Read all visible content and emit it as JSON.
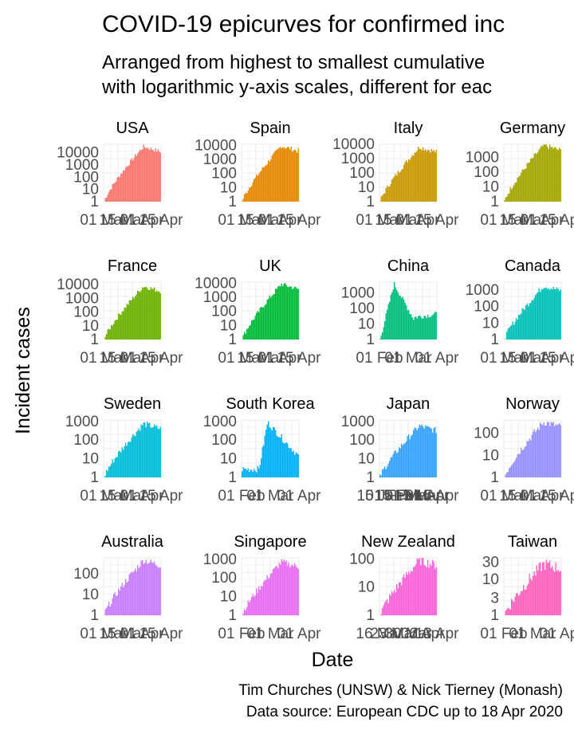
{
  "title": "COVID-19 epicurves for confirmed inc",
  "subtitle": [
    "Arranged from highest to smallest cumulative",
    "with logarithmic y-axis scales, different for eac"
  ],
  "xlabel": "Date",
  "ylabel": "Incident cases",
  "caption": [
    "Tim Churches (UNSW) & Nick Tierney (Monash)",
    "Data source: European CDC up to 18 Apr 2020"
  ],
  "chart_data": [
    {
      "panel": "USA",
      "type": "bar",
      "color": "#F8766D",
      "yscale": "log",
      "ylim": [
        1,
        50000
      ],
      "yticks": [
        "1",
        "10",
        "100",
        "1000",
        "10000"
      ],
      "xticks": [
        "01 Mar",
        "15 Mar",
        "01 Apr",
        "15 Apr"
      ],
      "peak": 32000,
      "start_fraction": 0.0
    },
    {
      "panel": "Spain",
      "type": "bar",
      "color": "#E58700",
      "yscale": "log",
      "ylim": [
        1,
        12000
      ],
      "yticks": [
        "1",
        "10",
        "100",
        "1000",
        "10000"
      ],
      "xticks": [
        "01 Mar",
        "15 Mar",
        "01 Apr",
        "15 Apr"
      ],
      "peak": 9000,
      "start_fraction": 0.05
    },
    {
      "panel": "Italy",
      "type": "bar",
      "color": "#C99800",
      "yscale": "log",
      "ylim": [
        1,
        10000
      ],
      "yticks": [
        "1",
        "10",
        "100",
        "1000",
        "10000"
      ],
      "xticks": [
        "01 Mar",
        "15 Mar",
        "01 Apr",
        "15 Apr"
      ],
      "peak": 6500,
      "start_fraction": 0.0
    },
    {
      "panel": "Germany",
      "type": "bar",
      "color": "#A3A500",
      "yscale": "log",
      "ylim": [
        1,
        8000
      ],
      "yticks": [
        "1",
        "10",
        "100",
        "1000"
      ],
      "xticks": [
        "01 Mar",
        "15 Mar",
        "01 Apr",
        "15 Apr"
      ],
      "peak": 6900,
      "start_fraction": 0.0
    },
    {
      "panel": "France",
      "type": "bar",
      "color": "#6BB100",
      "yscale": "log",
      "ylim": [
        1,
        15000
      ],
      "yticks": [
        "1",
        "10",
        "100",
        "1000",
        "10000"
      ],
      "xticks": [
        "01 Mar",
        "15 Mar",
        "01 Apr",
        "15 Apr"
      ],
      "peak": 7500,
      "start_fraction": 0.0
    },
    {
      "panel": "UK",
      "type": "bar",
      "color": "#00BA38",
      "yscale": "log",
      "ylim": [
        1,
        12000
      ],
      "yticks": [
        "1",
        "10",
        "100",
        "1000",
        "10000"
      ],
      "xticks": [
        "01 Mar",
        "15 Mar",
        "01 Apr",
        "15 Apr"
      ],
      "peak": 8700,
      "start_fraction": 0.0
    },
    {
      "panel": "China",
      "type": "bar",
      "color": "#00BF7D",
      "yscale": "log",
      "ylim": [
        1,
        5000
      ],
      "yticks": [
        "1",
        "10",
        "100",
        "1000"
      ],
      "xticks": [
        "01 Feb",
        "01 Mar",
        "01 Apr"
      ],
      "peak": 3900,
      "start_fraction": 0.0
    },
    {
      "panel": "Canada",
      "type": "bar",
      "color": "#00C0B8",
      "yscale": "log",
      "ylim": [
        1,
        3000
      ],
      "yticks": [
        "1",
        "10",
        "100",
        "1000"
      ],
      "xticks": [
        "01 Mar",
        "15 Mar",
        "01 Apr",
        "15 Apr"
      ],
      "peak": 1800,
      "start_fraction": 0.0
    },
    {
      "panel": "Sweden",
      "type": "bar",
      "color": "#00BCD8",
      "yscale": "log",
      "ylim": [
        1,
        1200
      ],
      "yticks": [
        "1",
        "10",
        "100",
        "1000"
      ],
      "xticks": [
        "01 Mar",
        "15 Mar",
        "01 Apr",
        "15 Apr"
      ],
      "peak": 750,
      "start_fraction": 0.0
    },
    {
      "panel": "South Korea",
      "type": "bar",
      "color": "#00B0F6",
      "yscale": "log",
      "ylim": [
        1,
        1200
      ],
      "yticks": [
        "1",
        "10",
        "100",
        "1000"
      ],
      "xticks": [
        "01 Feb",
        "01 Mar",
        "01 Apr"
      ],
      "peak": 900,
      "start_fraction": 0.0
    },
    {
      "panel": "Japan",
      "type": "bar",
      "color": "#35A2FF",
      "yscale": "log",
      "ylim": [
        1,
        1200
      ],
      "yticks": [
        "1",
        "10",
        "100",
        "1000"
      ],
      "xticks": [
        "15 Jan",
        "01 Feb",
        "15 Feb",
        "01 Mar",
        "15 Mar",
        "01 Apr",
        "15 Apr"
      ],
      "peak": 580,
      "start_fraction": 0.0
    },
    {
      "panel": "Norway",
      "type": "bar",
      "color": "#9590FF",
      "yscale": "log",
      "ylim": [
        1,
        400
      ],
      "yticks": [
        "1",
        "10",
        "100"
      ],
      "xticks": [
        "01 Mar",
        "15 Mar",
        "01 Apr",
        "15 Apr"
      ],
      "peak": 330,
      "start_fraction": 0.0
    },
    {
      "panel": "Australia",
      "type": "bar",
      "color": "#C77CFF",
      "yscale": "log",
      "ylim": [
        1,
        600
      ],
      "yticks": [
        "1",
        "10",
        "100"
      ],
      "xticks": [
        "01 Mar",
        "15 Mar",
        "01 Apr",
        "15 Apr"
      ],
      "peak": 460,
      "start_fraction": 0.0
    },
    {
      "panel": "Singapore",
      "type": "bar",
      "color": "#E76BF3",
      "yscale": "log",
      "ylim": [
        1,
        1200
      ],
      "yticks": [
        "1",
        "10",
        "100",
        "1000"
      ],
      "xticks": [
        "01 Feb",
        "01 Mar",
        "01 Apr"
      ],
      "peak": 730,
      "start_fraction": 0.0
    },
    {
      "panel": "New Zealand",
      "type": "bar",
      "color": "#FA62DB",
      "yscale": "log",
      "ylim": [
        1,
        110
      ],
      "yticks": [
        "1",
        "10",
        "100"
      ],
      "xticks": [
        "16 Mar",
        "23 Mar",
        "30 Mar",
        "06 Apr",
        "13 Apr"
      ],
      "peak": 90,
      "start_fraction": 0.0
    },
    {
      "panel": "Taiwan",
      "type": "bar",
      "color": "#FF62BC",
      "yscale": "log",
      "ylim": [
        1,
        40
      ],
      "yticks": [
        "1",
        "3",
        "10",
        "30"
      ],
      "xticks": [
        "01 Feb",
        "01 Mar",
        "01 Apr"
      ],
      "peak": 27,
      "start_fraction": 0.0
    }
  ]
}
